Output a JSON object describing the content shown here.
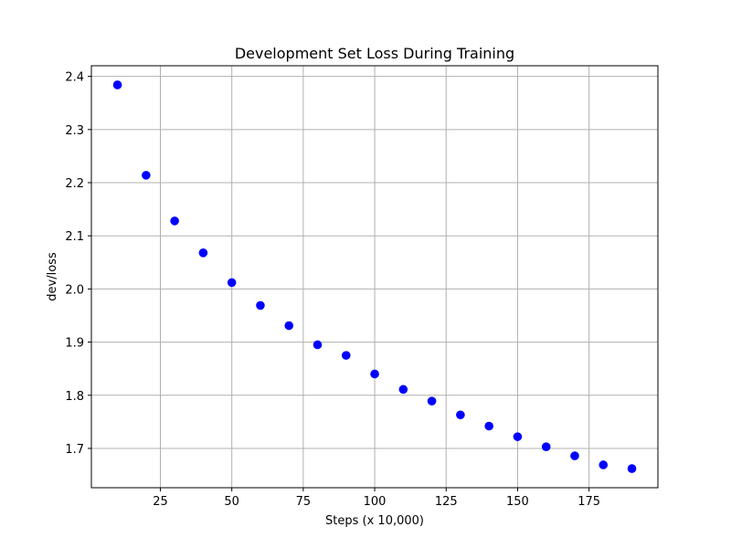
{
  "chart_data": {
    "type": "scatter",
    "title": "Development Set Loss During Training",
    "xlabel": "Steps (x 10,000)",
    "ylabel": "dev/loss",
    "xlim": [
      0.86,
      199.1
    ],
    "ylim": [
      1.626,
      2.42
    ],
    "xticks": [
      25,
      50,
      75,
      100,
      125,
      150,
      175
    ],
    "xtick_labels": [
      "25",
      "50",
      "75",
      "100",
      "125",
      "150",
      "175"
    ],
    "yticks": [
      1.7,
      1.8,
      1.9,
      2.0,
      2.1,
      2.2,
      2.3,
      2.4
    ],
    "ytick_labels": [
      "1.7",
      "1.8",
      "1.9",
      "2.0",
      "2.1",
      "2.2",
      "2.3",
      "2.4"
    ],
    "grid": true,
    "marker_color": "#0000ff",
    "series": [
      {
        "name": "dev/loss",
        "x": [
          10,
          20,
          30,
          40,
          50,
          60,
          70,
          80,
          90,
          100,
          110,
          120,
          130,
          140,
          150,
          160,
          170,
          180,
          190
        ],
        "y": [
          2.384,
          2.214,
          2.128,
          2.068,
          2.012,
          1.969,
          1.931,
          1.895,
          1.875,
          1.84,
          1.811,
          1.789,
          1.763,
          1.742,
          1.722,
          1.703,
          1.686,
          1.669,
          1.662
        ]
      }
    ]
  }
}
